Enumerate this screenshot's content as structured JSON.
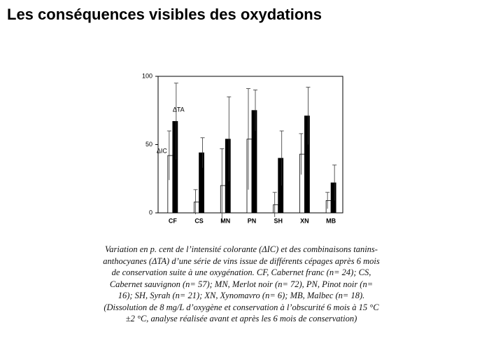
{
  "title": "Les conséquences visibles des oxydations",
  "caption": [
    "Variation en p. cent de l’intensité colorante (ΔIC) et des combinaisons tanins-",
    "anthocyanes (ΔTA) d’une série de vins issue de différents cépages après 6 mois",
    "de conservation suite à une oxygénation. CF, Cabernet franc (n= 24); CS,",
    "Cabernet sauvignon (n= 57); MN, Merlot noir (n= 72), PN, Pinot noir (n=",
    "16); SH, Syrah (n= 21); XN, Xynomavro (n= 6); MB, Malbec (n= 18).",
    "(Dissolution de 8 mg/L d’oxygène et conservation à l’obscurité 6 mois à 15 °C",
    "±2 °C, analyse réalisée avant et après les 6 mois de conservation)"
  ],
  "chart_data": {
    "type": "bar",
    "categories": [
      "CF",
      "CS",
      "MN",
      "PN",
      "SH",
      "XN",
      "MB"
    ],
    "series": [
      {
        "name": "ΔIC",
        "color": "#ffffff",
        "values": [
          42,
          8,
          20,
          54,
          6,
          43,
          9
        ],
        "errors": [
          18,
          9,
          27,
          37,
          9,
          15,
          6
        ]
      },
      {
        "name": "ΔTA",
        "color": "#000000",
        "values": [
          67,
          44,
          54,
          75,
          40,
          71,
          22
        ],
        "errors": [
          28,
          11,
          31,
          15,
          20,
          21,
          13
        ]
      }
    ],
    "ylim": [
      0,
      100
    ],
    "yticks": [
      0,
      50,
      100
    ],
    "grid": false
  }
}
